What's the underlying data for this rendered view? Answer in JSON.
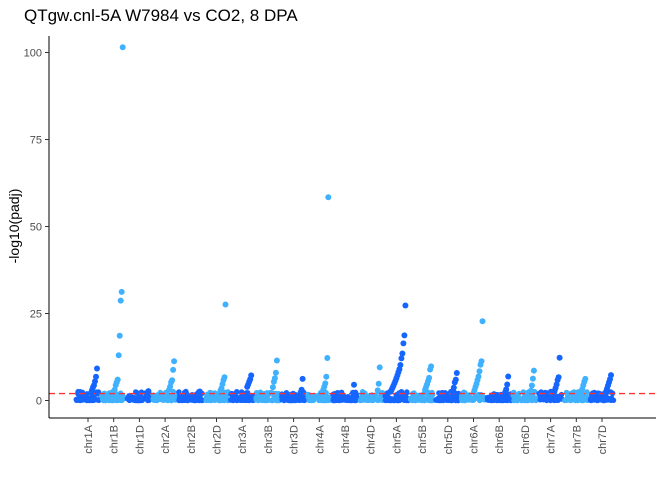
{
  "chart_data": {
    "type": "scatter",
    "title": "QTgw.cnl-5A W7984 vs CO2, 8 DPA",
    "xlabel": "",
    "ylabel": "-log10(padj)",
    "ylim": [
      0,
      105
    ],
    "yticks": [
      "0",
      "25",
      "50",
      "75",
      "100"
    ],
    "ytick_values": [
      0,
      25,
      50,
      75,
      100
    ],
    "threshold": {
      "value": 2,
      "color": "#ff3333",
      "style": "dashed"
    },
    "colors": {
      "dark": "#1565ff",
      "light": "#3fb1ff"
    },
    "grid": false,
    "legend": "none",
    "categories": [
      "chr1A",
      "chr1B",
      "chr1D",
      "chr2A",
      "chr2B",
      "chr2D",
      "chr3A",
      "chr3B",
      "chr3D",
      "chr4A",
      "chr4B",
      "chr4D",
      "chr5A",
      "chr5B",
      "chr5D",
      "chr6A",
      "chr6B",
      "chr6D",
      "chr7A",
      "chr7B",
      "chr7D"
    ],
    "points": [
      {
        "chr": "chr1A",
        "y": 9.2
      },
      {
        "chr": "chr1A",
        "y": 6.8
      },
      {
        "chr": "chr1A",
        "y": 5.5
      },
      {
        "chr": "chr1A",
        "y": 4.4
      },
      {
        "chr": "chr1A",
        "y": 3.8
      },
      {
        "chr": "chr1A",
        "y": 3.0
      },
      {
        "chr": "chr1A",
        "y": 2.2
      },
      {
        "chr": "chr1B",
        "y": 101.5
      },
      {
        "chr": "chr1B",
        "y": 31.2
      },
      {
        "chr": "chr1B",
        "y": 28.7
      },
      {
        "chr": "chr1B",
        "y": 18.6
      },
      {
        "chr": "chr1B",
        "y": 13.0
      },
      {
        "chr": "chr1B",
        "y": 6.0
      },
      {
        "chr": "chr1B",
        "y": 5.2
      },
      {
        "chr": "chr1B",
        "y": 4.4
      },
      {
        "chr": "chr1B",
        "y": 3.1
      },
      {
        "chr": "chr1D",
        "y": 2.7
      },
      {
        "chr": "chr1D",
        "y": 1.6
      },
      {
        "chr": "chr2A",
        "y": 11.3
      },
      {
        "chr": "chr2A",
        "y": 8.8
      },
      {
        "chr": "chr2A",
        "y": 5.8
      },
      {
        "chr": "chr2A",
        "y": 5.2
      },
      {
        "chr": "chr2A",
        "y": 4.0
      },
      {
        "chr": "chr2A",
        "y": 3.1
      },
      {
        "chr": "chr2B",
        "y": 2.6
      },
      {
        "chr": "chr2B",
        "y": 1.5
      },
      {
        "chr": "chr2D",
        "y": 27.6
      },
      {
        "chr": "chr2D",
        "y": 6.7
      },
      {
        "chr": "chr2D",
        "y": 5.9
      },
      {
        "chr": "chr2D",
        "y": 4.7
      },
      {
        "chr": "chr2D",
        "y": 3.5
      },
      {
        "chr": "chr2D",
        "y": 2.9
      },
      {
        "chr": "chr3A",
        "y": 7.2
      },
      {
        "chr": "chr3A",
        "y": 6.1
      },
      {
        "chr": "chr3A",
        "y": 5.4
      },
      {
        "chr": "chr3A",
        "y": 4.6
      },
      {
        "chr": "chr3A",
        "y": 3.9
      },
      {
        "chr": "chr3B",
        "y": 11.5
      },
      {
        "chr": "chr3B",
        "y": 8.0
      },
      {
        "chr": "chr3B",
        "y": 6.4
      },
      {
        "chr": "chr3B",
        "y": 5.4
      },
      {
        "chr": "chr3B",
        "y": 3.8
      },
      {
        "chr": "chr3D",
        "y": 6.2
      },
      {
        "chr": "chr3D",
        "y": 3.1
      },
      {
        "chr": "chr3D",
        "y": 2.3
      },
      {
        "chr": "chr4A",
        "y": 58.4
      },
      {
        "chr": "chr4A",
        "y": 12.2
      },
      {
        "chr": "chr4A",
        "y": 6.8
      },
      {
        "chr": "chr4A",
        "y": 4.9
      },
      {
        "chr": "chr4A",
        "y": 4.0
      },
      {
        "chr": "chr4A",
        "y": 3.1
      },
      {
        "chr": "chr4B",
        "y": 4.5
      },
      {
        "chr": "chr4B",
        "y": 2.2
      },
      {
        "chr": "chr4D",
        "y": 9.5
      },
      {
        "chr": "chr4D",
        "y": 4.8
      },
      {
        "chr": "chr4D",
        "y": 2.9
      },
      {
        "chr": "chr5A",
        "y": 27.3
      },
      {
        "chr": "chr5A",
        "y": 18.7
      },
      {
        "chr": "chr5A",
        "y": 16.4
      },
      {
        "chr": "chr5A",
        "y": 13.5
      },
      {
        "chr": "chr5A",
        "y": 12.1
      },
      {
        "chr": "chr5A",
        "y": 10.2
      },
      {
        "chr": "chr5A",
        "y": 9.0
      },
      {
        "chr": "chr5A",
        "y": 8.1
      },
      {
        "chr": "chr5A",
        "y": 7.2
      },
      {
        "chr": "chr5A",
        "y": 6.4
      },
      {
        "chr": "chr5A",
        "y": 5.6
      },
      {
        "chr": "chr5A",
        "y": 4.9
      },
      {
        "chr": "chr5A",
        "y": 4.2
      },
      {
        "chr": "chr5A",
        "y": 3.6
      },
      {
        "chr": "chr5A",
        "y": 3.0
      },
      {
        "chr": "chr5A",
        "y": 2.5
      },
      {
        "chr": "chr5B",
        "y": 9.8
      },
      {
        "chr": "chr5B",
        "y": 8.9
      },
      {
        "chr": "chr5B",
        "y": 6.5
      },
      {
        "chr": "chr5B",
        "y": 5.6
      },
      {
        "chr": "chr5B",
        "y": 4.7
      },
      {
        "chr": "chr5B",
        "y": 3.9
      },
      {
        "chr": "chr5B",
        "y": 3.1
      },
      {
        "chr": "chr5D",
        "y": 7.9
      },
      {
        "chr": "chr5D",
        "y": 6.0
      },
      {
        "chr": "chr5D",
        "y": 5.2
      },
      {
        "chr": "chr5D",
        "y": 3.7
      },
      {
        "chr": "chr5D",
        "y": 2.6
      },
      {
        "chr": "chr6A",
        "y": 22.8
      },
      {
        "chr": "chr6A",
        "y": 11.3
      },
      {
        "chr": "chr6A",
        "y": 10.3
      },
      {
        "chr": "chr6A",
        "y": 8.4
      },
      {
        "chr": "chr6A",
        "y": 6.9
      },
      {
        "chr": "chr6A",
        "y": 5.9
      },
      {
        "chr": "chr6A",
        "y": 4.8
      },
      {
        "chr": "chr6A",
        "y": 3.9
      },
      {
        "chr": "chr6A",
        "y": 3.0
      },
      {
        "chr": "chr6B",
        "y": 6.9
      },
      {
        "chr": "chr6B",
        "y": 4.6
      },
      {
        "chr": "chr6B",
        "y": 3.2
      },
      {
        "chr": "chr6B",
        "y": 2.4
      },
      {
        "chr": "chr6D",
        "y": 8.6
      },
      {
        "chr": "chr6D",
        "y": 6.3
      },
      {
        "chr": "chr6D",
        "y": 4.3
      },
      {
        "chr": "chr6D",
        "y": 2.8
      },
      {
        "chr": "chr7A",
        "y": 12.3
      },
      {
        "chr": "chr7A",
        "y": 6.7
      },
      {
        "chr": "chr7A",
        "y": 5.9
      },
      {
        "chr": "chr7A",
        "y": 4.6
      },
      {
        "chr": "chr7A",
        "y": 3.6
      },
      {
        "chr": "chr7A",
        "y": 2.8
      },
      {
        "chr": "chr7B",
        "y": 6.2
      },
      {
        "chr": "chr7B",
        "y": 5.4
      },
      {
        "chr": "chr7B",
        "y": 4.4
      },
      {
        "chr": "chr7B",
        "y": 3.3
      },
      {
        "chr": "chr7B",
        "y": 2.4
      },
      {
        "chr": "chr7D",
        "y": 7.3
      },
      {
        "chr": "chr7D",
        "y": 6.1
      },
      {
        "chr": "chr7D",
        "y": 5.2
      },
      {
        "chr": "chr7D",
        "y": 4.3
      },
      {
        "chr": "chr7D",
        "y": 3.4
      },
      {
        "chr": "chr7D",
        "y": 2.5
      }
    ]
  }
}
